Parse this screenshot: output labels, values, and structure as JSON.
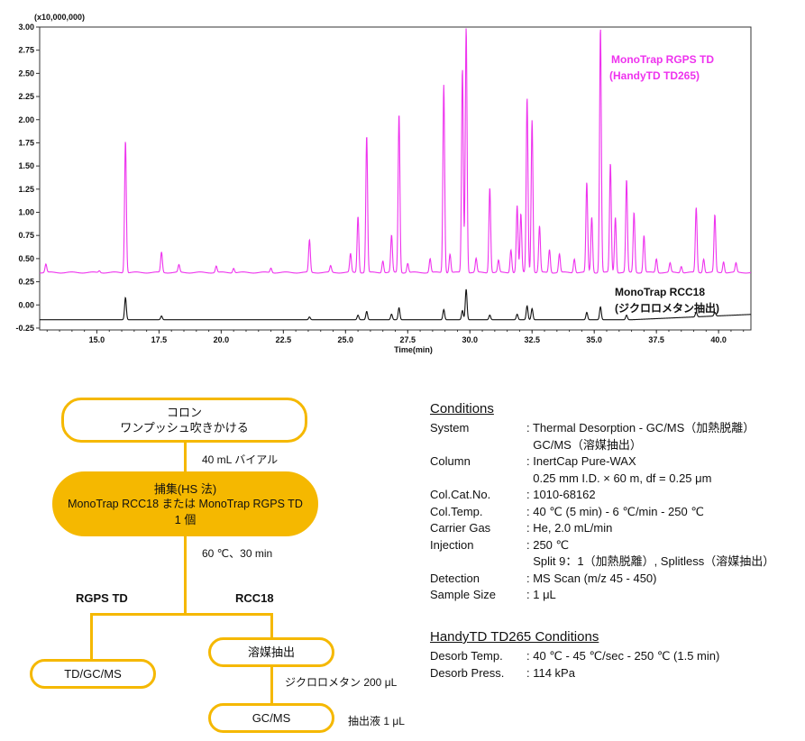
{
  "chart_data": {
    "type": "line",
    "y_multiplier_label": "(x10,000,000)",
    "xlabel": "Time(min)",
    "xlim": [
      12.7,
      41.3
    ],
    "ylim": [
      -0.27,
      3.0
    ],
    "x_ticks": [
      "15.0",
      "17.5",
      "20.0",
      "22.5",
      "25.0",
      "27.5",
      "30.0",
      "32.5",
      "35.0",
      "37.5",
      "40.0"
    ],
    "y_ticks": [
      "-0.25",
      "0.00",
      "0.25",
      "0.50",
      "0.75",
      "1.00",
      "1.25",
      "1.50",
      "1.75",
      "2.00",
      "2.25",
      "2.50",
      "2.75",
      "3.00"
    ],
    "series": [
      {
        "name": "MonoTrap RGPS TD (HandyTD TD265)",
        "color": "#ee33ee",
        "baseline": 0.35,
        "peaks": [
          [
            12.95,
            0.44
          ],
          [
            15.1,
            0.37
          ],
          [
            16.15,
            1.78
          ],
          [
            17.6,
            0.57
          ],
          [
            18.3,
            0.43
          ],
          [
            19.8,
            0.42
          ],
          [
            20.5,
            0.4
          ],
          [
            22.0,
            0.4
          ],
          [
            23.55,
            0.7
          ],
          [
            24.4,
            0.42
          ],
          [
            25.2,
            0.55
          ],
          [
            25.5,
            0.96
          ],
          [
            25.85,
            1.83
          ],
          [
            26.5,
            0.48
          ],
          [
            26.85,
            0.75
          ],
          [
            27.15,
            2.07
          ],
          [
            27.5,
            0.45
          ],
          [
            28.4,
            0.5
          ],
          [
            28.95,
            2.38
          ],
          [
            29.2,
            0.55
          ],
          [
            29.7,
            2.55
          ],
          [
            29.85,
            3.0
          ],
          [
            30.25,
            0.5
          ],
          [
            30.8,
            1.27
          ],
          [
            31.15,
            0.48
          ],
          [
            31.65,
            0.6
          ],
          [
            31.9,
            1.07
          ],
          [
            32.05,
            0.98
          ],
          [
            32.3,
            2.24
          ],
          [
            32.5,
            2.0
          ],
          [
            32.8,
            0.85
          ],
          [
            33.2,
            0.6
          ],
          [
            33.6,
            0.55
          ],
          [
            34.2,
            0.5
          ],
          [
            34.7,
            1.32
          ],
          [
            34.9,
            0.95
          ],
          [
            35.25,
            3.0
          ],
          [
            35.65,
            1.53
          ],
          [
            35.85,
            0.95
          ],
          [
            36.3,
            1.35
          ],
          [
            36.6,
            1.0
          ],
          [
            37.0,
            0.75
          ],
          [
            37.5,
            0.5
          ],
          [
            38.05,
            0.45
          ],
          [
            38.5,
            0.42
          ],
          [
            39.1,
            1.05
          ],
          [
            39.4,
            0.5
          ],
          [
            39.85,
            0.97
          ],
          [
            40.2,
            0.47
          ],
          [
            40.7,
            0.45
          ]
        ]
      },
      {
        "name": "MonoTrap RCC18 (ジクロロメタン抽出)",
        "color": "#111111",
        "baseline": -0.16,
        "peaks": [
          [
            16.15,
            0.08
          ],
          [
            17.6,
            -0.12
          ],
          [
            23.55,
            -0.13
          ],
          [
            25.5,
            -0.11
          ],
          [
            25.85,
            -0.07
          ],
          [
            26.85,
            -0.1
          ],
          [
            27.15,
            -0.03
          ],
          [
            28.95,
            -0.05
          ],
          [
            29.7,
            -0.06
          ],
          [
            29.85,
            0.17
          ],
          [
            30.8,
            -0.11
          ],
          [
            31.9,
            -0.1
          ],
          [
            32.3,
            -0.01
          ],
          [
            32.5,
            -0.04
          ],
          [
            34.7,
            -0.08
          ],
          [
            35.25,
            -0.02
          ],
          [
            36.3,
            -0.11
          ],
          [
            39.1,
            -0.11
          ],
          [
            39.85,
            -0.12
          ]
        ]
      }
    ],
    "labels": {
      "pink_line1": "MonoTrap RGPS TD",
      "pink_line2": "(HandyTD TD265)",
      "black_line1": "MonoTrap RCC18",
      "black_line2": "(ジクロロメタン抽出)"
    }
  },
  "flow": {
    "box_top_line1": "コロン",
    "box_top_line2": "ワンプッシュ吹きかける",
    "note_vial": "40 mL バイアル",
    "box_capture_line1": "捕集(HS 法)",
    "box_capture_line2": "MonoTrap RCC18 または MonoTrap RGPS TD",
    "box_capture_line3": "1 個",
    "note_temp": "60 ℃、30 min",
    "branch_left": "RGPS TD",
    "branch_right": "RCC18",
    "box_td": "TD/GC/MS",
    "box_solvent": "溶媒抽出",
    "note_solvent": "ジクロロメタン 200 μL",
    "box_gcms": "GC/MS",
    "note_extract": "抽出液 1 μL"
  },
  "conditions": {
    "title": "Conditions",
    "rows": [
      {
        "key": "System",
        "val": [
          ": Thermal Desorption - GC/MS（加熱脱離）",
          "  GC/MS（溶媒抽出）"
        ]
      },
      {
        "key": "Column",
        "val": [
          ": InertCap Pure-WAX",
          "  0.25 mm I.D. × 60 m, df = 0.25 μm"
        ]
      },
      {
        "key": "Col.Cat.No.",
        "val": [
          ": 1010-68162"
        ]
      },
      {
        "key": "Col.Temp.",
        "val": [
          ": 40 ℃ (5 min) - 6 ℃/min - 250 ℃"
        ]
      },
      {
        "key": "Carrier Gas",
        "val": [
          ": He, 2.0 mL/min"
        ]
      },
      {
        "key": "Injection",
        "val": [
          ": 250 ℃",
          "  Split 9：1（加熱脱離）, Splitless（溶媒抽出）"
        ]
      },
      {
        "key": "Detection",
        "val": [
          ": MS Scan (m/z 45 - 450)"
        ]
      },
      {
        "key": "Sample Size",
        "val": [
          ": 1 μL"
        ]
      }
    ]
  },
  "handy": {
    "title": "HandyTD TD265 Conditions",
    "rows": [
      {
        "key": "Desorb Temp.",
        "val": [
          ": 40 ℃ - 45 ℃/sec - 250 ℃ (1.5 min)"
        ]
      },
      {
        "key": "Desorb Press.",
        "val": [
          ": 114 kPa"
        ]
      }
    ]
  }
}
